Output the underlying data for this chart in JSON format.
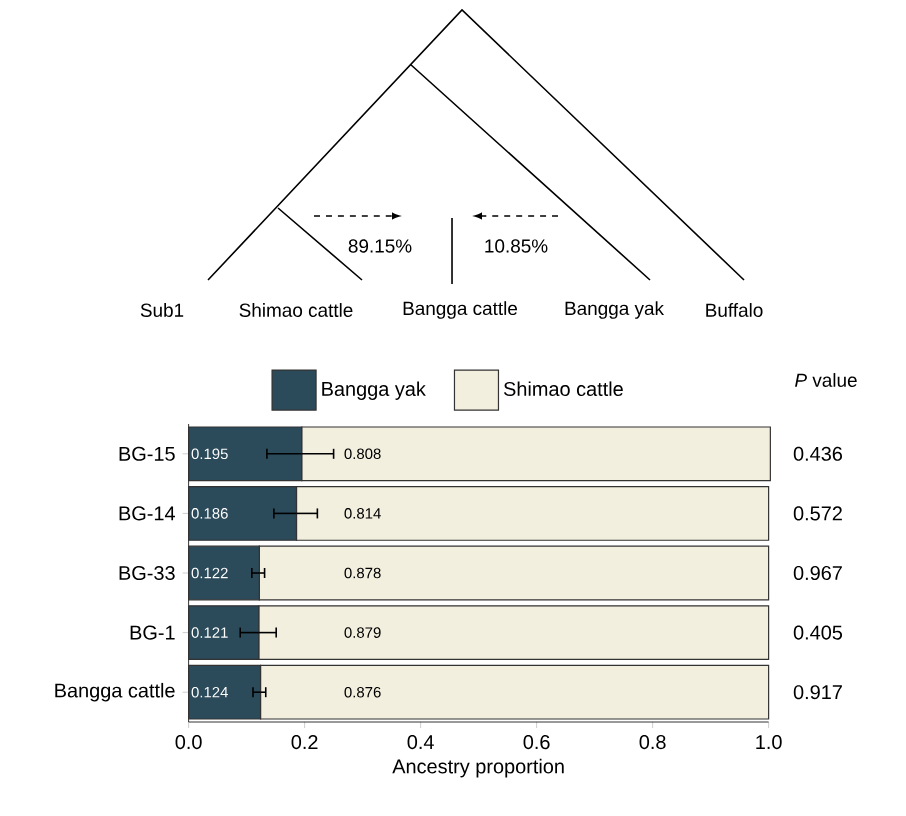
{
  "chart_data": {
    "type": "bar",
    "orientation": "horizontal",
    "stacked": true,
    "data_labels": true,
    "legend": "top",
    "grid": false,
    "xlabel": "Ancestry proportion",
    "categories": [
      "BG-15",
      "BG-14",
      "BG-33",
      "BG-1",
      "Bangga cattle"
    ],
    "series": [
      {
        "name": "Bangga yak",
        "color": "#2b4a5a",
        "values": [
          0.195,
          0.186,
          0.122,
          0.121,
          0.124
        ],
        "errors": [
          [
            0.135,
            0.25
          ],
          [
            0.147,
            0.222
          ],
          [
            0.109,
            0.131
          ],
          [
            0.089,
            0.151
          ],
          [
            0.111,
            0.133
          ]
        ]
      },
      {
        "name": "Shimao cattle",
        "color": "#f3efdf",
        "values": [
          0.808,
          0.814,
          0.878,
          0.879,
          0.876
        ]
      }
    ],
    "xlim": [
      0,
      1.0
    ],
    "xticks": [
      {
        "value": 0,
        "label": "0.0"
      },
      0.2,
      0.4,
      0.6,
      0.8,
      {
        "value": 1.0,
        "label": "1.0"
      }
    ],
    "annotations": [
      "Sub1",
      "Shimao cattle",
      "Bangga cattle",
      "Bangga yak",
      "Buffalo",
      "89.15%",
      "10.85%",
      "*P* value",
      "0.436",
      "0.572",
      "0.967",
      "0.405",
      "0.917"
    ]
  }
}
